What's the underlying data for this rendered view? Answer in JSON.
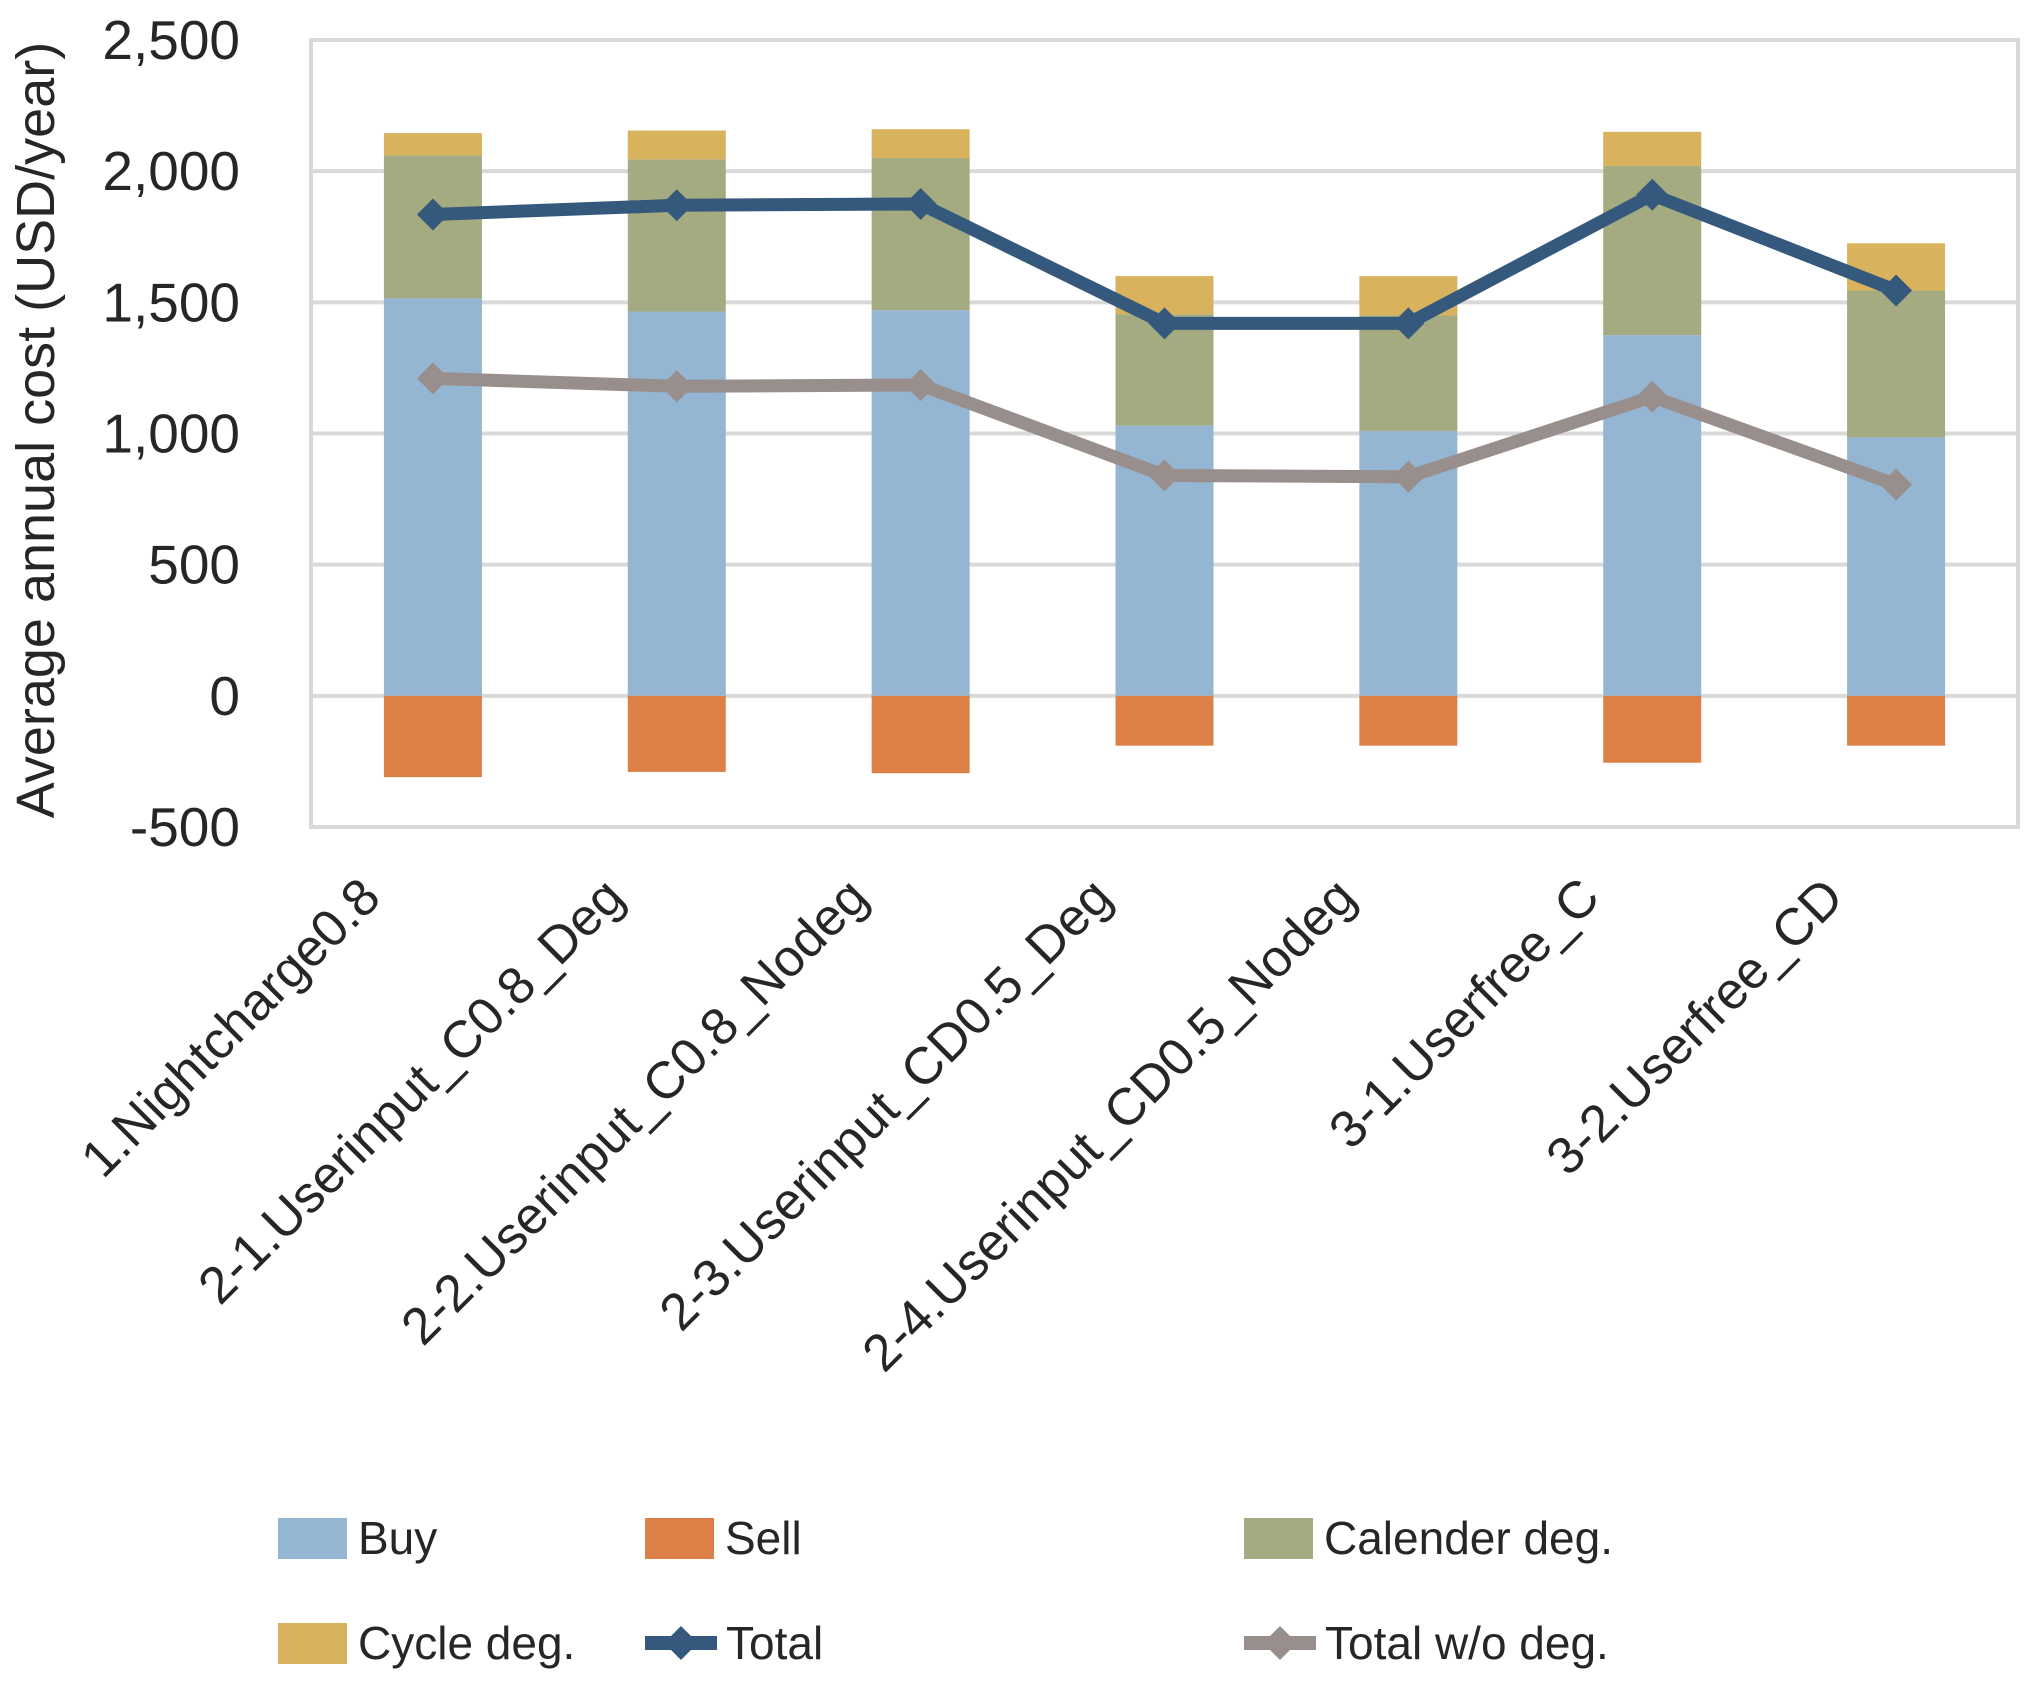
{
  "figure": {
    "background": "#FFFFFF",
    "text_color": "#262626",
    "grid_color": "#D9D9D9"
  },
  "chart_data": {
    "type": "bar",
    "subtype": "stacked-bars-with-line-overlay",
    "title": "",
    "xlabel": "",
    "ylabel": "Average annual cost (USD/year)",
    "categories": [
      "1.Nightcharge0.8",
      "2-1.Userinput_C0.8_Deg",
      "2-2.Userinput_C0.8_Nodeg",
      "2-3.Userinput_CD0.5_Deg",
      "2-4.Userinput_CD0.5_Nodeg",
      "3-1.Userfree_C",
      "3-2.Userfree_CD"
    ],
    "series": [
      {
        "name": "Buy",
        "type": "bar",
        "color": "#94B6D2",
        "values": [
          1515,
          1465,
          1470,
          1030,
          1010,
          1375,
          985
        ]
      },
      {
        "name": "Sell",
        "type": "bar",
        "color": "#DD8047",
        "values": [
          -310,
          -290,
          -295,
          -190,
          -190,
          -255,
          -190
        ]
      },
      {
        "name": "Calender deg.",
        "type": "bar",
        "color": "#A5AB81",
        "values": [
          545,
          580,
          580,
          425,
          440,
          645,
          560
        ]
      },
      {
        "name": "Cycle deg.",
        "type": "bar",
        "color": "#D8B25C",
        "values": [
          85,
          110,
          110,
          145,
          150,
          130,
          180
        ]
      },
      {
        "name": "Total",
        "type": "line",
        "color": "#35597D",
        "values": [
          1835,
          1870,
          1875,
          1420,
          1420,
          1910,
          1545
        ]
      },
      {
        "name": "Total w/o deg.",
        "type": "line",
        "color": "#988E8C",
        "values": [
          1210,
          1180,
          1185,
          840,
          835,
          1140,
          805
        ]
      }
    ],
    "stacked": true,
    "ylim": [
      -500,
      2500
    ],
    "ytick_values": [
      2500,
      2000,
      1500,
      1000,
      500,
      0,
      -500
    ],
    "ytick_labels": [
      "2,500",
      "2,000",
      "1,500",
      "1,000",
      "500",
      "0",
      "-500"
    ],
    "grid": true,
    "legend_position": "bottom"
  },
  "legend": {
    "items": [
      {
        "label": "Buy",
        "kind": "bar",
        "color": "#94B6D2"
      },
      {
        "label": "Sell",
        "kind": "bar",
        "color": "#DD8047"
      },
      {
        "label": "Calender deg.",
        "kind": "bar",
        "color": "#A5AB81"
      },
      {
        "label": "Cycle deg.",
        "kind": "bar",
        "color": "#D8B25C"
      },
      {
        "label": "Total",
        "kind": "line",
        "color": "#35597D"
      },
      {
        "label": "Total w/o deg.",
        "kind": "line",
        "color": "#988E8C"
      }
    ]
  }
}
